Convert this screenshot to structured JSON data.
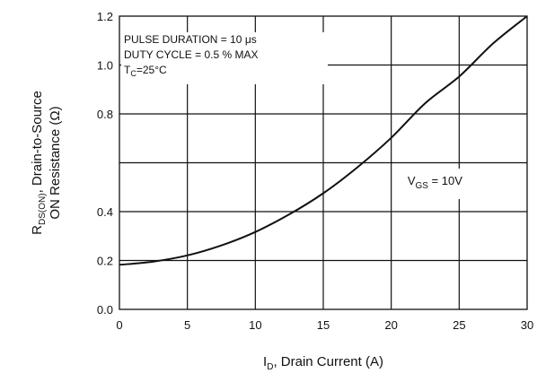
{
  "chart_data": {
    "type": "line",
    "title": "",
    "xlabel": {
      "main": "I",
      "sub": "D",
      "rest": ", Drain Current (A)"
    },
    "ylabel": {
      "line1_main": "R",
      "line1_sub": "DS(ON)",
      "line1_rest": ", Drain-to-Source",
      "line2": "ON Resistance (Ω)"
    },
    "xlim": [
      0,
      30
    ],
    "x_ticks": [
      0,
      5,
      10,
      15,
      20,
      25,
      30
    ],
    "x_tick_labels": [
      "0",
      "5",
      "10",
      "15",
      "20",
      "25",
      "30"
    ],
    "y_tick_labels": [
      "0.0",
      "0.2",
      "0.4",
      "0.8",
      "1.0",
      "1.2"
    ],
    "grid": true,
    "annotations": {
      "pulse": "PULSE DURATION = 10 μs",
      "duty": "DUTY CYCLE = 0.5 % MAX",
      "tc_main": "T",
      "tc_sub": "C",
      "tc_rest": "=25°C"
    },
    "series": [
      {
        "label_main": "V",
        "label_sub": "GS",
        "label_rest": " = 10V",
        "color": "#111111",
        "note": "y values given as fraction of the plotted vertical axis (0.0 at bottom, 1.2 at top)",
        "x": [
          0,
          2.5,
          5,
          7.5,
          10,
          12.5,
          15,
          17.5,
          20,
          22.5,
          25,
          27.5,
          30
        ],
        "y": [
          0.152,
          0.163,
          0.184,
          0.218,
          0.264,
          0.324,
          0.396,
          0.484,
          0.585,
          0.703,
          0.794,
          0.907,
          1.0
        ]
      }
    ]
  }
}
